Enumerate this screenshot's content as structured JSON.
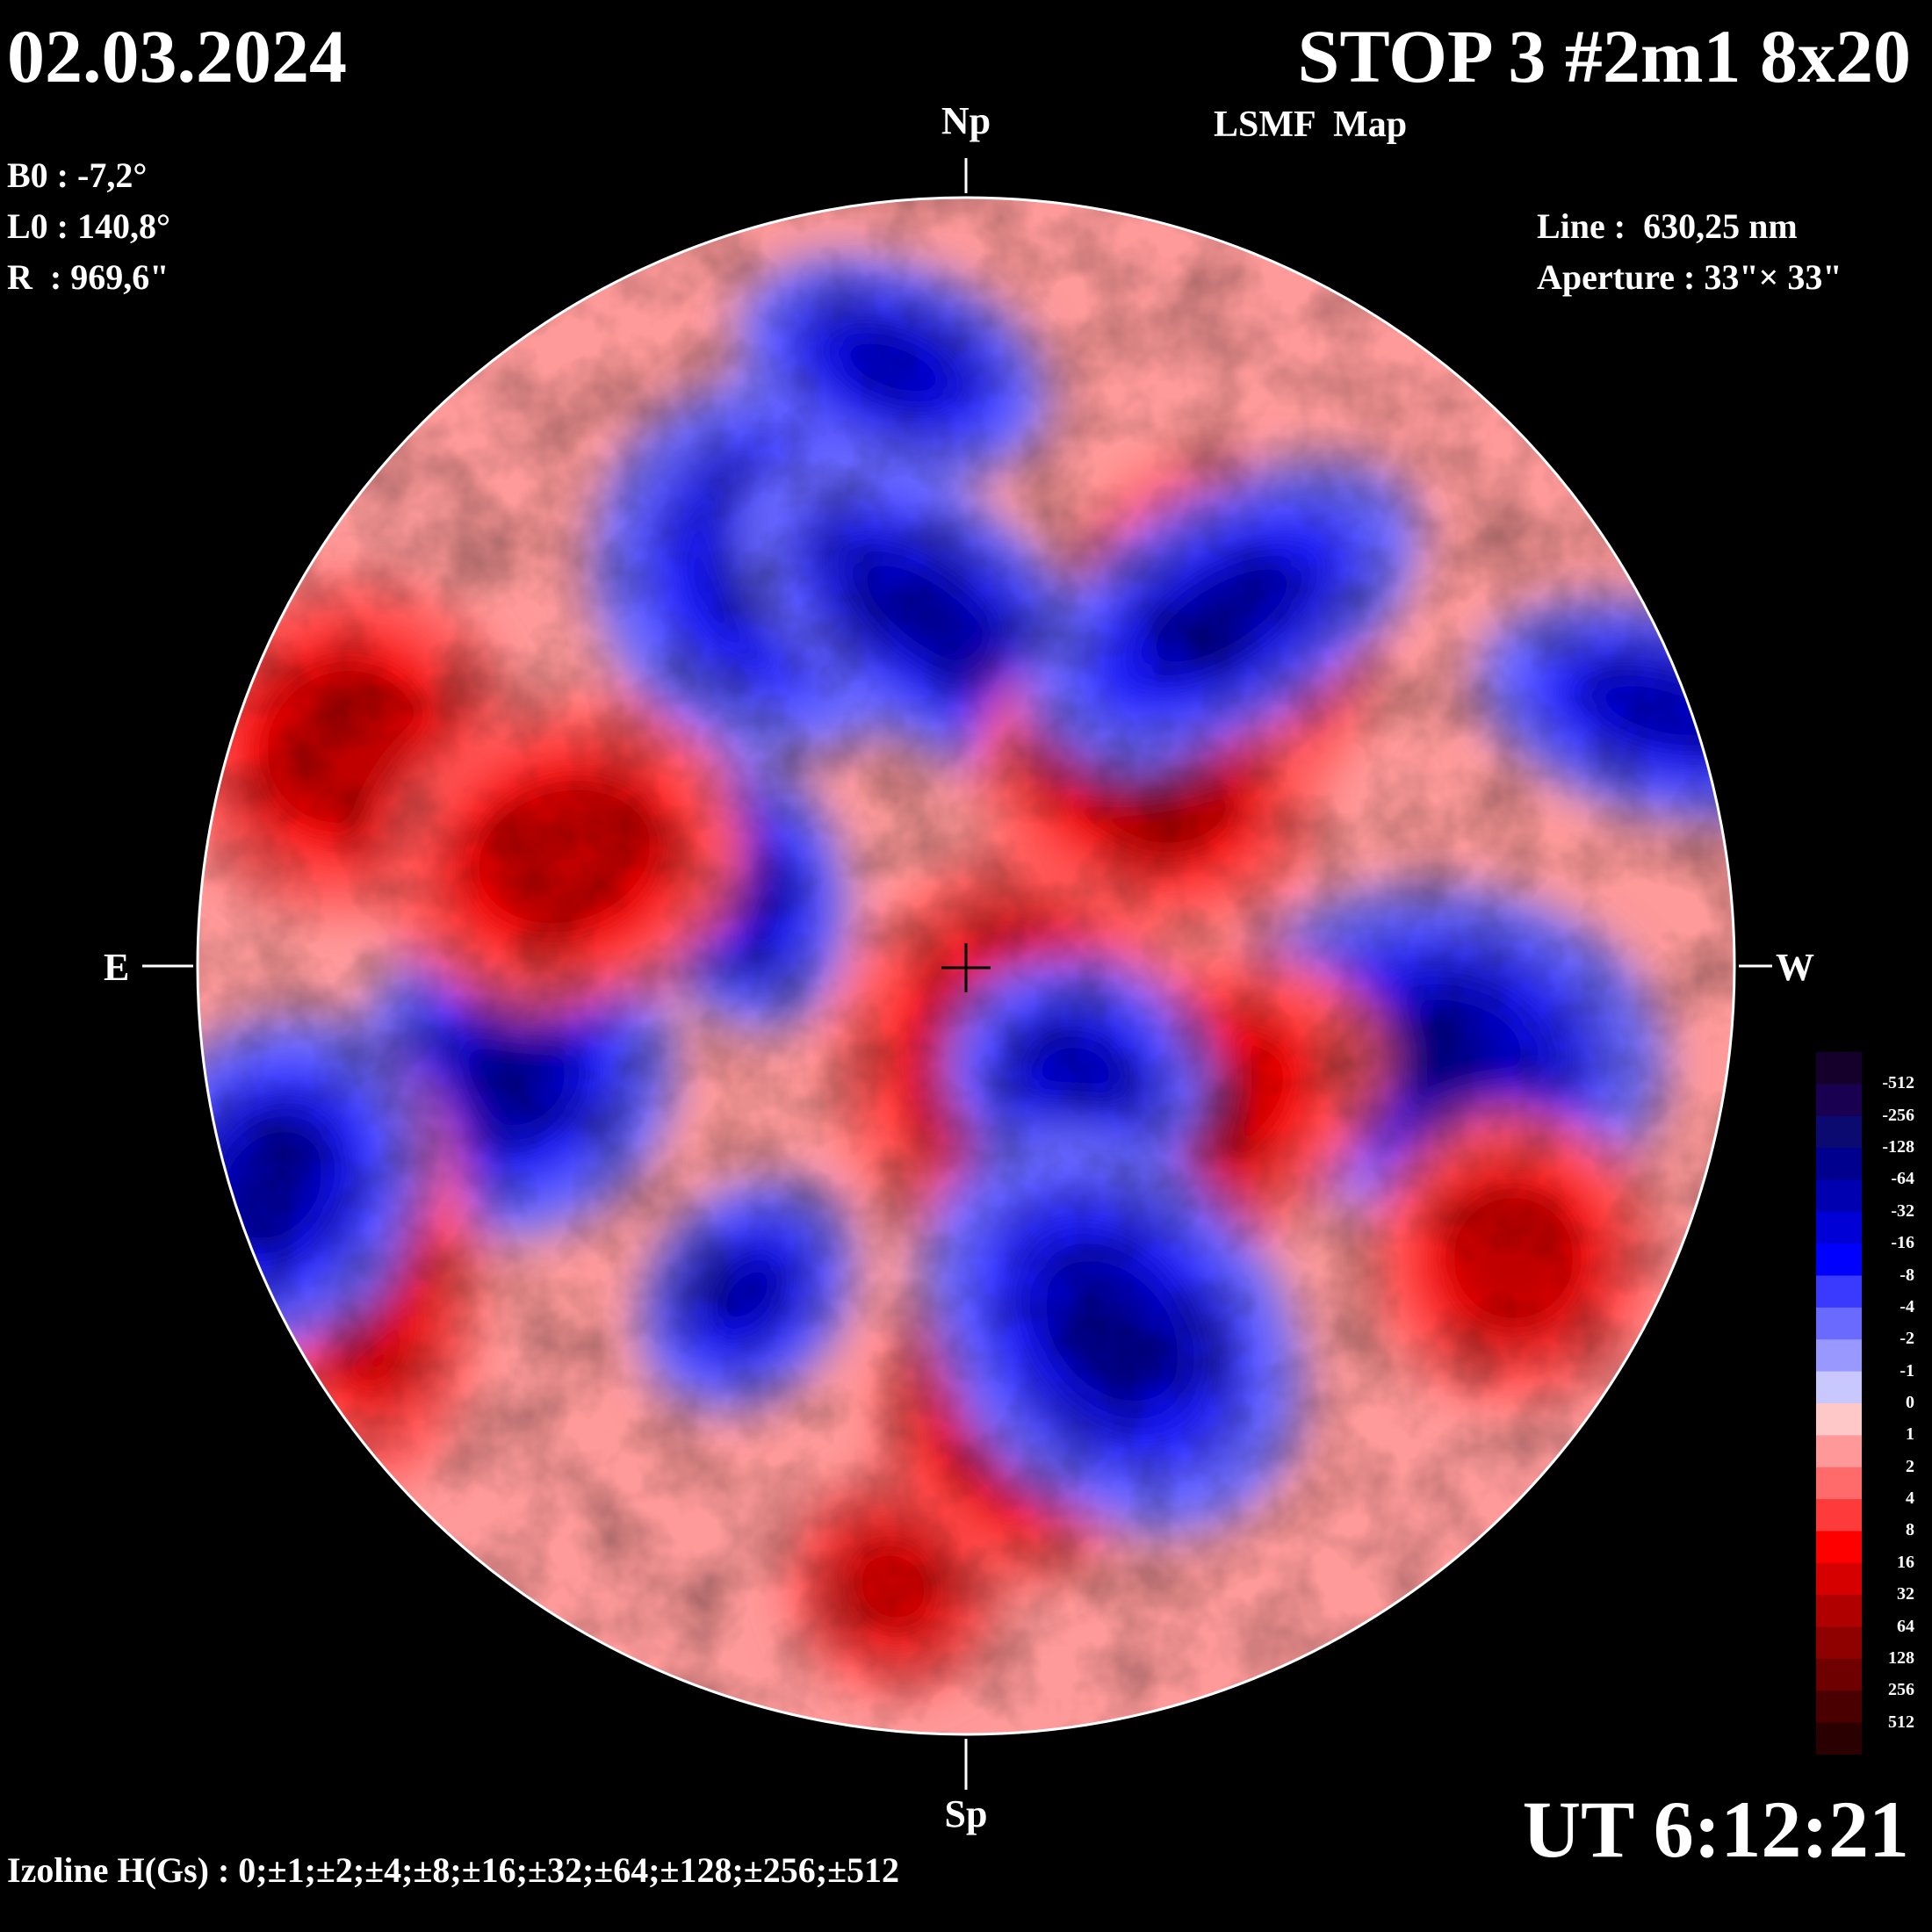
{
  "header": {
    "date": "02.03.2024",
    "title": "STOP 3 #2m1 8x20",
    "subtitle": "LSMF  Map"
  },
  "ephemeris": {
    "b0": "B0 : -7,2°",
    "l0": "L0 : 140,8°",
    "r": "R  : 969,6\""
  },
  "instrument": {
    "line": "Line :  630,25 nm",
    "aperture": "Aperture : 33\"× 33\""
  },
  "compass": {
    "north": "Np",
    "south": "Sp",
    "east": "E",
    "west": "W"
  },
  "time": "UT 6:12:21",
  "izoline_text": "Izoline H(Gs) : 0;±1;±2;±4;±8;±16;±32;±64;±128;±256;±512",
  "colorbar": {
    "labels": [
      "-512",
      "-256",
      "-128",
      "-64",
      "-32",
      "-16",
      "-8",
      "-4",
      "-2",
      "-1",
      "0",
      "1",
      "2",
      "4",
      "8",
      "16",
      "32",
      "64",
      "128",
      "256",
      "512"
    ],
    "colors": [
      "#14002a",
      "#1a0050",
      "#0a0a70",
      "#00008f",
      "#0000b0",
      "#0000d6",
      "#0000ff",
      "#3a3aff",
      "#6a6aff",
      "#9898ff",
      "#c8c8ff",
      "#ffc8c8",
      "#ff9898",
      "#ff6a6a",
      "#ff3a3a",
      "#ff0000",
      "#d60000",
      "#b00000",
      "#8f0000",
      "#6e0000",
      "#4a0000",
      "#2a0000"
    ]
  },
  "map_regions": [
    {
      "kind": "neg",
      "lat": 0.55,
      "lon": -0.25,
      "strength": 0.9
    },
    {
      "kind": "neg",
      "lat": 0.48,
      "lon": -0.05,
      "strength": 0.75
    },
    {
      "kind": "pos",
      "lat": 0.45,
      "lon": 0.35,
      "strength": 0.9
    },
    {
      "kind": "pos",
      "lat": 0.25,
      "lon": 0.25,
      "strength": 0.8
    },
    {
      "kind": "neg",
      "lat": 0.48,
      "lon": 0.35,
      "strength": 0.95
    },
    {
      "kind": "neg",
      "lat": -0.12,
      "lon": 0.65,
      "strength": 0.85
    },
    {
      "kind": "neg",
      "lat": -0.15,
      "lon": -0.62,
      "strength": 0.9
    },
    {
      "kind": "neg",
      "lat": 0.1,
      "lon": -0.3,
      "strength": 0.6
    },
    {
      "kind": "pos",
      "lat": -0.1,
      "lon": 0.05,
      "strength": 0.6
    },
    {
      "kind": "pos",
      "lat": -0.2,
      "lon": 0.3,
      "strength": 0.9
    },
    {
      "kind": "neg",
      "lat": -0.15,
      "lon": 0.15,
      "strength": 0.7
    },
    {
      "kind": "pos",
      "lat": 0.3,
      "lon": -0.85,
      "strength": 0.7
    },
    {
      "kind": "pos",
      "lat": -0.4,
      "lon": -0.83,
      "strength": 0.8
    },
    {
      "kind": "neg",
      "lat": -0.3,
      "lon": -0.95,
      "strength": 0.8
    },
    {
      "kind": "pos",
      "lat": -0.65,
      "lon": 0.05,
      "strength": 0.55
    },
    {
      "kind": "neg",
      "lat": 0.35,
      "lon": 0.95,
      "strength": 0.7
    },
    {
      "kind": "neg",
      "lat": -0.5,
      "lon": 0.2,
      "strength": 0.8
    },
    {
      "kind": "pos",
      "lat": -0.4,
      "lon": 0.75,
      "strength": 0.7
    },
    {
      "kind": "neg",
      "lat": -0.45,
      "lon": -0.3,
      "strength": 0.5
    },
    {
      "kind": "pos",
      "lat": 0.15,
      "lon": -0.55,
      "strength": 0.5
    },
    {
      "kind": "neg",
      "lat": 0.82,
      "lon": -0.1,
      "strength": 0.4
    },
    {
      "kind": "pos",
      "lat": -0.85,
      "lon": -0.1,
      "strength": 0.4
    }
  ]
}
